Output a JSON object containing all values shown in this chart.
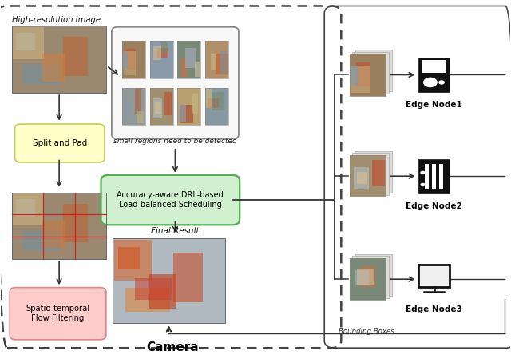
{
  "title": "Camera",
  "title_fontsize": 11,
  "title_fontweight": "bold",
  "bg_color": "#ffffff",
  "labels": {
    "high_res": "High-resolution Image",
    "small_regions": "small regions need to be detected",
    "split_pad": "Split and Pad",
    "spatio": "Spatio-temporal\nFlow Filtering",
    "drl": "Accuracy-aware DRL-based\nLoad-balanced Scheduling",
    "final_result": "Final Result",
    "bounding_boxes": "Bounding Boxes",
    "edge1": "Edge Node1",
    "edge2": "Edge Node2",
    "edge3": "Edge Node3"
  }
}
